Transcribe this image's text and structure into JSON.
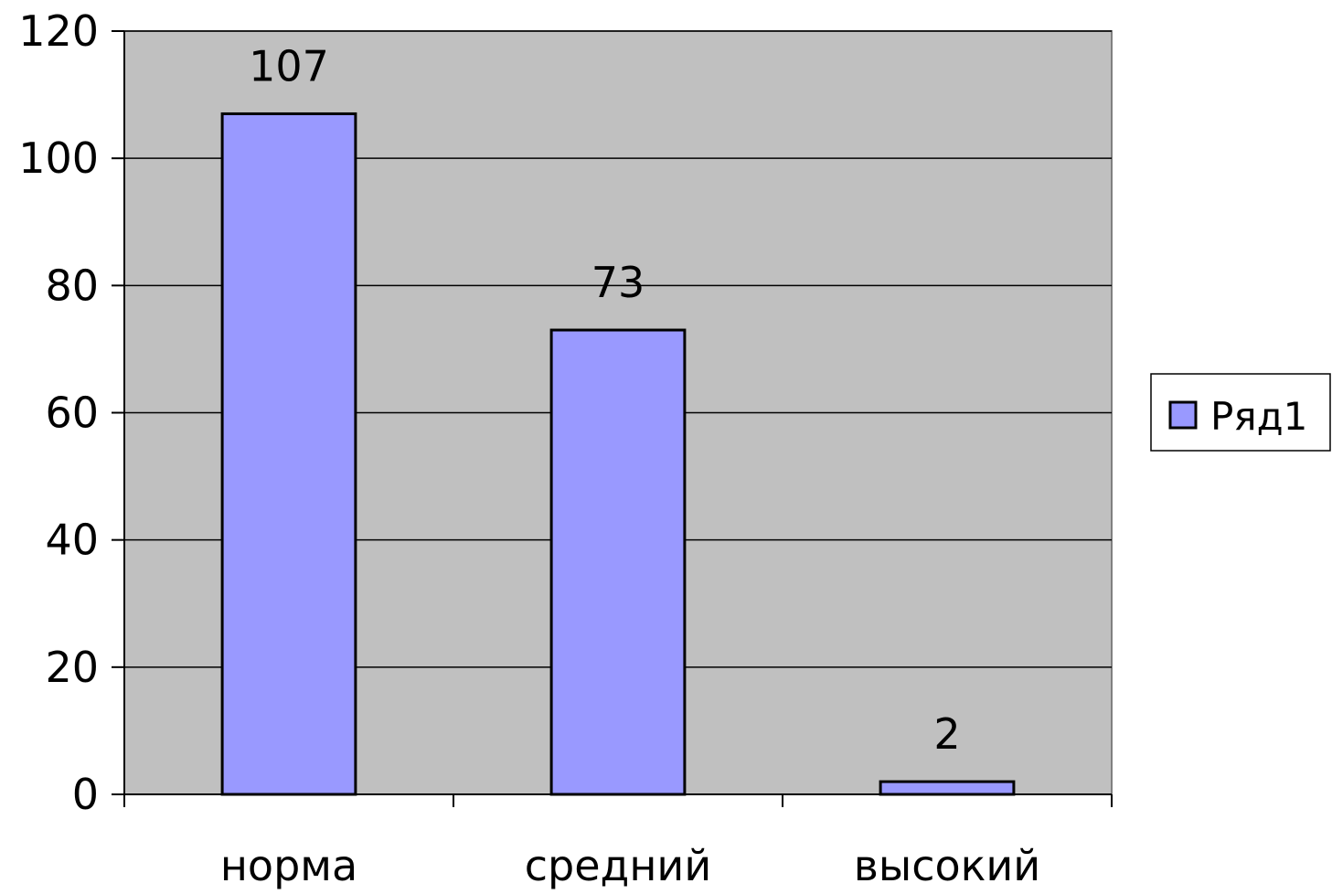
{
  "chart_data": {
    "type": "bar",
    "categories": [
      "норма",
      "средний",
      "высокий"
    ],
    "series": [
      {
        "name": "Ряд1",
        "values": [
          107,
          73,
          2
        ]
      }
    ],
    "data_labels": [
      "107",
      "73",
      "2"
    ],
    "ylim": [
      0,
      120
    ],
    "yticks": [
      0,
      20,
      40,
      60,
      80,
      100,
      120
    ],
    "ytick_labels": [
      "0",
      "20",
      "40",
      "60",
      "80",
      "100",
      "120"
    ],
    "grid": true,
    "legend": {
      "position": "right",
      "entries": [
        "Ряд1"
      ]
    },
    "colors": {
      "bar_fill": "#9999ff",
      "bar_stroke": "#000000",
      "plot_background": "#c0c0c0",
      "gridline": "#000000"
    }
  }
}
